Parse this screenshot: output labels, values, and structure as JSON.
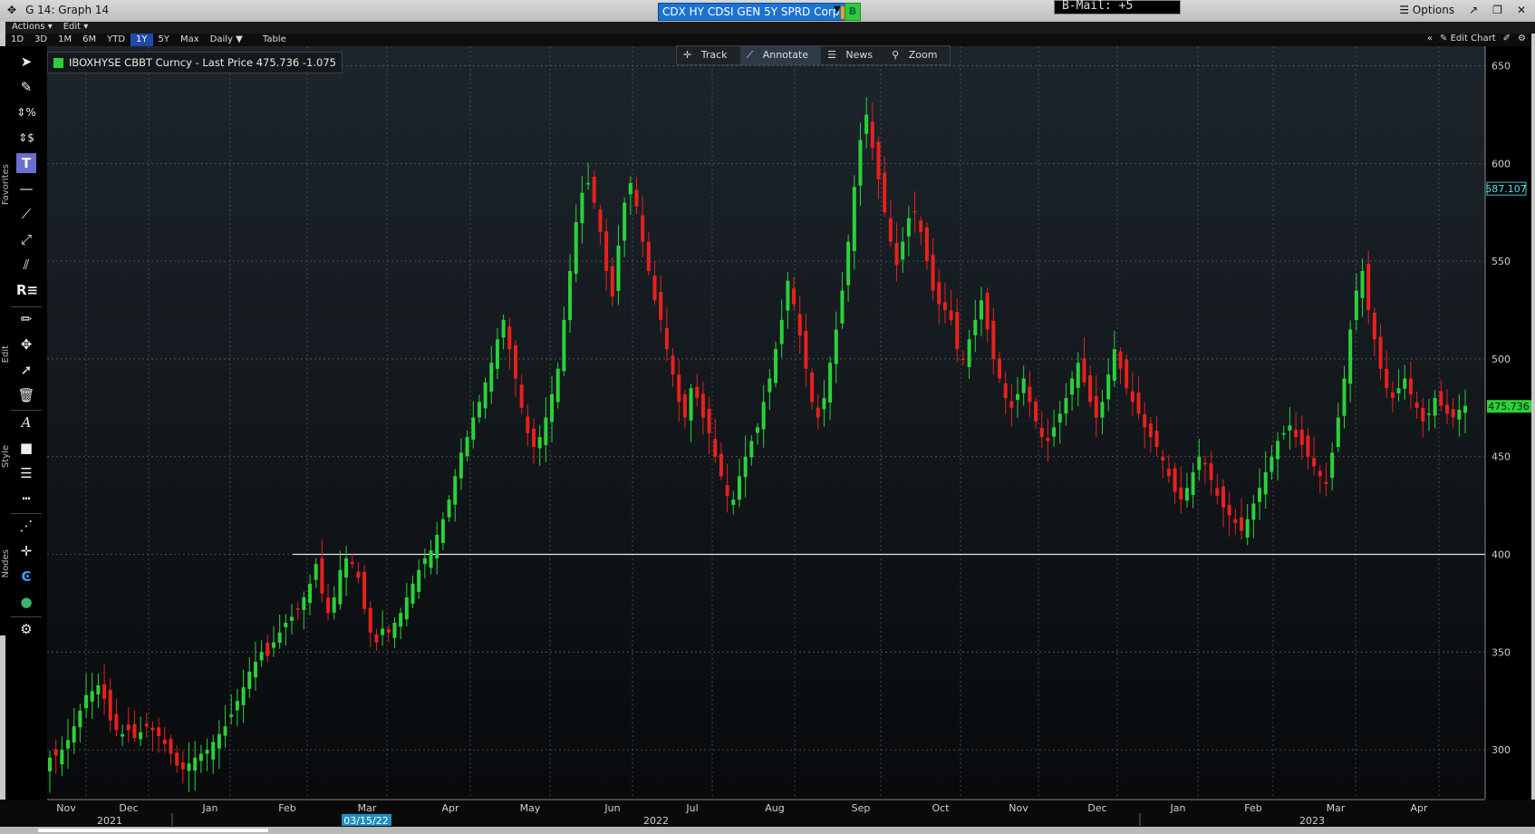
{
  "window": {
    "move_icon": "move-icon",
    "title": "G 14: Graph 14",
    "ticker": "CDX HY CDSI GEN 5Y SPRD Corp",
    "go_label": "B",
    "bmail": "B-Mail: +5",
    "options_label": "Options"
  },
  "menu": {
    "actions": "Actions ▾",
    "edit": "Edit ▾"
  },
  "periods": [
    "1D",
    "3D",
    "1M",
    "6M",
    "YTD",
    "1Y",
    "5Y",
    "Max"
  ],
  "selected_period": "1Y",
  "frequency": "Daily ▼",
  "table_label": "Table",
  "edit_chart": "Edit Chart",
  "toolbar_sections": {
    "favorites": "Favorites",
    "edit": "Edit",
    "style": "Style",
    "nodes": "Nodes"
  },
  "hud": {
    "track": "Track",
    "annotate": "Annotate",
    "news": "News",
    "zoom": "Zoom"
  },
  "legend": {
    "text": "IBOXHYSE CBBT Curncy - Last Price 475.736  -1.075",
    "color": "#2bd13a"
  },
  "chart_data": {
    "type": "candlestick",
    "y_ticks": [
      300,
      350,
      400,
      450,
      500,
      550,
      600,
      650
    ],
    "ylim": [
      275,
      660
    ],
    "month_labels": [
      "Nov",
      "Dec",
      "Jan",
      "Feb",
      "Mar",
      "Apr",
      "May",
      "Jun",
      "Jul",
      "Aug",
      "Sep",
      "Oct",
      "Nov",
      "Dec",
      "Jan",
      "Feb",
      "Mar",
      "Apr"
    ],
    "year_labels": [
      "2021",
      "2022",
      "2023"
    ],
    "cursor_date": "03/15/22",
    "horizontal_line": 400,
    "last_price": 475.736,
    "last_price_label": "475.736",
    "crosshair_value_label": "587.107",
    "crosshair_value": 587.107,
    "up_color": "#2bd13a",
    "down_color": "#e8211d",
    "closes": [
      296,
      297,
      300,
      305,
      312,
      320,
      328,
      330,
      333,
      326,
      315,
      310,
      308,
      310,
      306,
      309,
      312,
      310,
      307,
      303,
      298,
      292,
      290,
      293,
      296,
      298,
      300,
      304,
      308,
      312,
      318,
      325,
      332,
      340,
      345,
      350,
      348,
      355,
      360,
      365,
      368,
      372,
      378,
      385,
      395,
      380,
      370,
      378,
      392,
      398,
      395,
      388,
      372,
      360,
      355,
      362,
      360,
      365,
      370,
      378,
      385,
      392,
      398,
      402,
      410,
      418,
      428,
      440,
      452,
      460,
      470,
      478,
      488,
      498,
      510,
      520,
      505,
      490,
      475,
      462,
      455,
      460,
      470,
      482,
      495,
      520,
      545,
      570,
      585,
      590,
      580,
      565,
      545,
      532,
      558,
      580,
      590,
      578,
      560,
      545,
      530,
      520,
      505,
      492,
      478,
      470,
      485,
      480,
      470,
      462,
      450,
      440,
      430,
      428,
      440,
      450,
      458,
      465,
      478,
      490,
      505,
      520,
      540,
      528,
      512,
      495,
      478,
      470,
      480,
      498,
      515,
      535,
      560,
      588,
      612,
      625,
      608,
      592,
      575,
      560,
      548,
      560,
      572,
      575,
      565,
      550,
      535,
      528,
      525,
      520,
      505,
      500,
      510,
      520,
      530,
      515,
      500,
      490,
      480,
      475,
      482,
      490,
      478,
      468,
      460,
      458,
      465,
      472,
      480,
      490,
      498,
      488,
      478,
      470,
      478,
      492,
      505,
      495,
      485,
      478,
      472,
      465,
      460,
      455,
      448,
      440,
      432,
      428,
      434,
      442,
      450,
      446,
      438,
      430,
      424,
      420,
      416,
      412,
      418,
      426,
      434,
      442,
      450,
      458,
      462,
      466,
      460,
      456,
      450,
      445,
      440,
      436,
      452,
      470,
      490,
      515,
      535,
      545,
      525,
      510,
      495,
      485,
      480,
      485,
      490,
      482,
      475,
      468,
      472,
      480,
      476,
      472,
      470,
      474,
      476
    ]
  }
}
